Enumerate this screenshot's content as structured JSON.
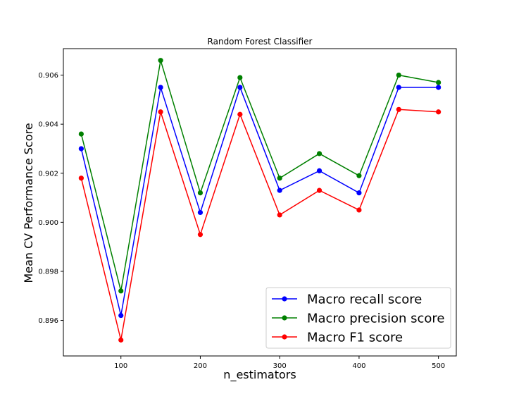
{
  "chart_data": {
    "type": "line",
    "title": "Random Forest Classifier",
    "xlabel": "n_estimators",
    "ylabel": "Mean CV Performance Score",
    "x": [
      50,
      100,
      150,
      200,
      250,
      300,
      350,
      400,
      450,
      500
    ],
    "xlim": [
      27.5,
      522.5
    ],
    "ylim": [
      0.89455,
      0.90708
    ],
    "xticks": [
      100,
      200,
      300,
      400,
      500
    ],
    "yticks": [
      0.896,
      0.898,
      0.9,
      0.902,
      0.904,
      0.906
    ],
    "xtick_labels": [
      "100",
      "200",
      "300",
      "400",
      "500"
    ],
    "ytick_labels": [
      "0.896",
      "0.898",
      "0.900",
      "0.902",
      "0.904",
      "0.906"
    ],
    "grid": false,
    "legend_position": "bottom-right",
    "series": [
      {
        "name": "Macro recall score",
        "color": "#0000ff",
        "values": [
          0.903,
          0.8962,
          0.9055,
          0.9004,
          0.9055,
          0.9013,
          0.9021,
          0.9012,
          0.9055,
          0.9055
        ]
      },
      {
        "name": "Macro precision score",
        "color": "#008000",
        "values": [
          0.9036,
          0.8972,
          0.9066,
          0.9012,
          0.9059,
          0.9018,
          0.9028,
          0.9019,
          0.906,
          0.9057
        ]
      },
      {
        "name": "Macro F1 score",
        "color": "#ff0000",
        "values": [
          0.9018,
          0.8952,
          0.9045,
          0.8995,
          0.9044,
          0.9003,
          0.9013,
          0.9005,
          0.9046,
          0.9045
        ]
      }
    ]
  }
}
